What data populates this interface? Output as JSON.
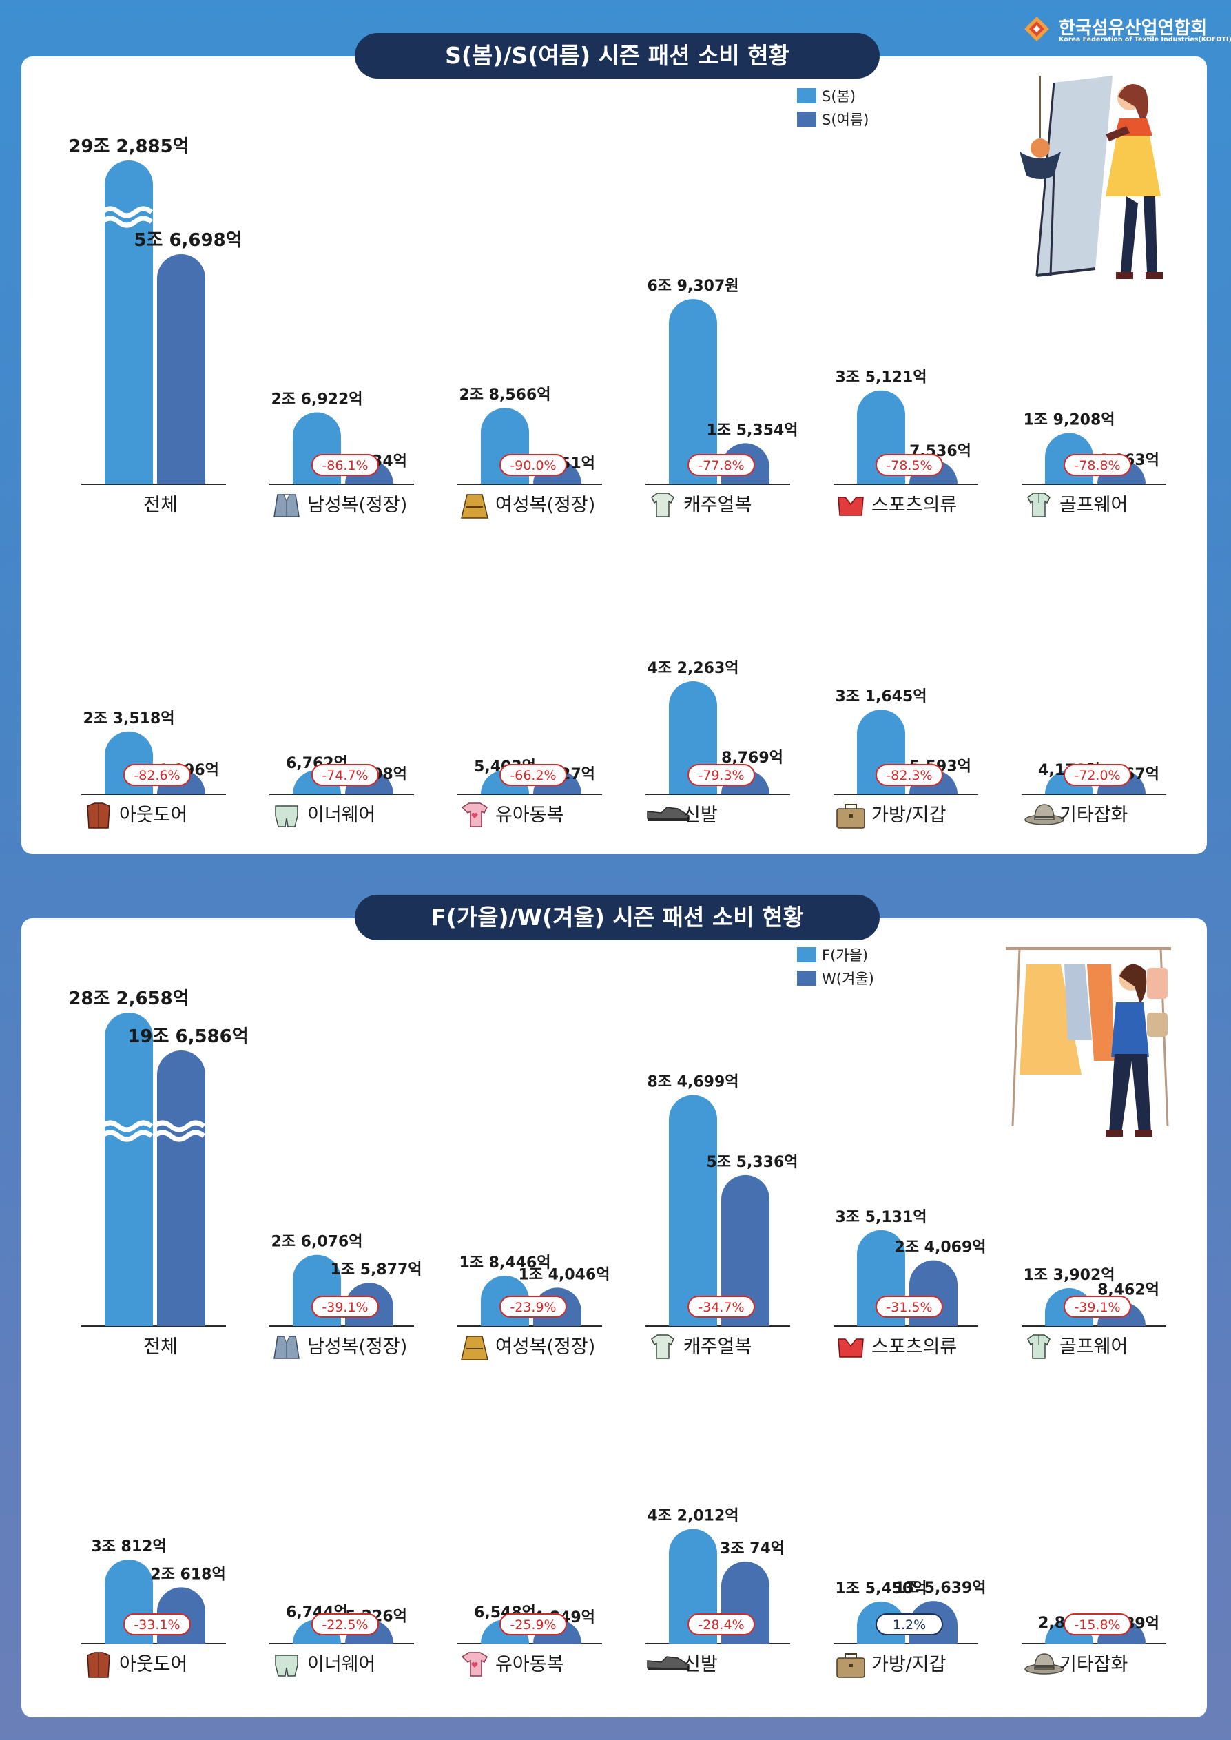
{
  "logo": {
    "name_ko": "한국섬유산업연합회",
    "name_en": "Korea Federation of Textile Industries(KOFOTI)"
  },
  "colors": {
    "spring_fall": "#4399d6",
    "summer_winter": "#4670b0",
    "title_bg": "#1c3158",
    "decline": "#d42a2a",
    "increase": "#1c3158"
  },
  "sections": [
    {
      "title": "S(봄)/S(여름) 시즌 패션 소비 현황",
      "legend": [
        "S(봄)",
        "S(여름)"
      ],
      "illustration": "woman-mirror-shopping-illustration",
      "chart_data": {
        "type": "bar",
        "categories": [
          "전체",
          "남성복(정장)",
          "여성복(정장)",
          "캐주얼복",
          "스포츠의류",
          "골프웨어",
          "아웃도어",
          "이너웨어",
          "유아동복",
          "신발",
          "가방/지갑",
          "기타잡화"
        ],
        "category_icons": [
          "",
          "suit-jacket-icon",
          "trench-coat-icon",
          "casual-shirt-icon",
          "sports-bra-icon",
          "golf-shirt-icon",
          "outdoor-jacket-icon",
          "underwear-icon",
          "baby-clothes-icon",
          "shoe-icon",
          "bag-icon",
          "hat-icon"
        ],
        "units": "억원",
        "series": [
          {
            "name": "S(봄)",
            "values": [
              292885,
              26922,
              28566,
              69307,
              35121,
              19208,
              23518,
              6762,
              5403,
              42263,
              31645,
              4171
            ],
            "labels": [
              "29조 2,885억",
              "2조 6,922억",
              "2조 8,566억",
              "6조 9,307원",
              "3조 5,121억",
              "1조 9,208억",
              "2조 3,518억",
              "6,762억",
              "5,403억",
              "4조 2,263억",
              "3조 1,645억",
              "4,171억"
            ]
          },
          {
            "name": "S(여름)",
            "values": [
              56698,
              3734,
              2851,
              15354,
              7536,
              4063,
              4096,
              1708,
              1827,
              8769,
              5593,
              1167
            ],
            "labels": [
              "5조 6,698억",
              "3,734억",
              "2,851억",
              "1조 5,354억",
              "7,536억",
              "4,063억",
              "4,096억",
              "1,708억",
              "1,827억",
              "8,769억",
              "5,593억",
              "1,167억"
            ]
          }
        ],
        "changes": [
          "",
          "-86.1%",
          "-90.0%",
          "-77.8%",
          "-78.5%",
          "-78.8%",
          "-82.6%",
          "-74.7%",
          "-66.2%",
          "-79.3%",
          "-82.3%",
          "-72.0%"
        ],
        "broken_axis_first_category": true
      }
    },
    {
      "title": "F(가을)/W(겨울) 시즌 패션 소비 현황",
      "legend": [
        "F(가을)",
        "W(겨울)"
      ],
      "illustration": "woman-clothing-rack-illustration",
      "chart_data": {
        "type": "bar",
        "categories": [
          "전체",
          "남성복(정장)",
          "여성복(정장)",
          "캐주얼복",
          "스포츠의류",
          "골프웨어",
          "아웃도어",
          "이너웨어",
          "유아동복",
          "신발",
          "가방/지갑",
          "기타잡화"
        ],
        "category_icons": [
          "",
          "suit-jacket-icon",
          "trench-coat-icon",
          "casual-shirt-icon",
          "sports-bra-icon",
          "golf-shirt-icon",
          "outdoor-jacket-icon",
          "underwear-icon",
          "baby-clothes-icon",
          "shoe-icon",
          "bag-icon",
          "hat-icon"
        ],
        "units": "억원",
        "series": [
          {
            "name": "F(가을)",
            "values": [
              282658,
              26076,
              18446,
              84699,
              35131,
              13902,
              30812,
              6744,
              6548,
              42012,
              15450,
              2838
            ],
            "labels": [
              "28조 2,658억",
              "2조 6,076억",
              "1조 8,446억",
              "8조 4,699억",
              "3조 5,131억",
              "1조 3,902억",
              "3조 812억",
              "6,744억",
              "6,548억",
              "4조 2,012억",
              "1조 5,450억",
              "2,838억"
            ]
          },
          {
            "name": "W(겨울)",
            "values": [
              196586,
              15877,
              14046,
              55336,
              24069,
              8462,
              20618,
              5226,
              4849,
              30074,
              15639,
              2389
            ],
            "labels": [
              "19조 6,586억",
              "1조 5,877억",
              "1조 4,046억",
              "5조 5,336억",
              "2조 4,069억",
              "8,462억",
              "2조 618억",
              "5,226억",
              "4,849억",
              "3조 74억",
              "1조 5,639억",
              "2,389억"
            ]
          }
        ],
        "changes": [
          "",
          "-39.1%",
          "-23.9%",
          "-34.7%",
          "-31.5%",
          "-39.1%",
          "-33.1%",
          "-22.5%",
          "-25.9%",
          "-28.4%",
          "1.2%",
          "-15.8%"
        ],
        "broken_axis_first_category": true
      }
    }
  ]
}
